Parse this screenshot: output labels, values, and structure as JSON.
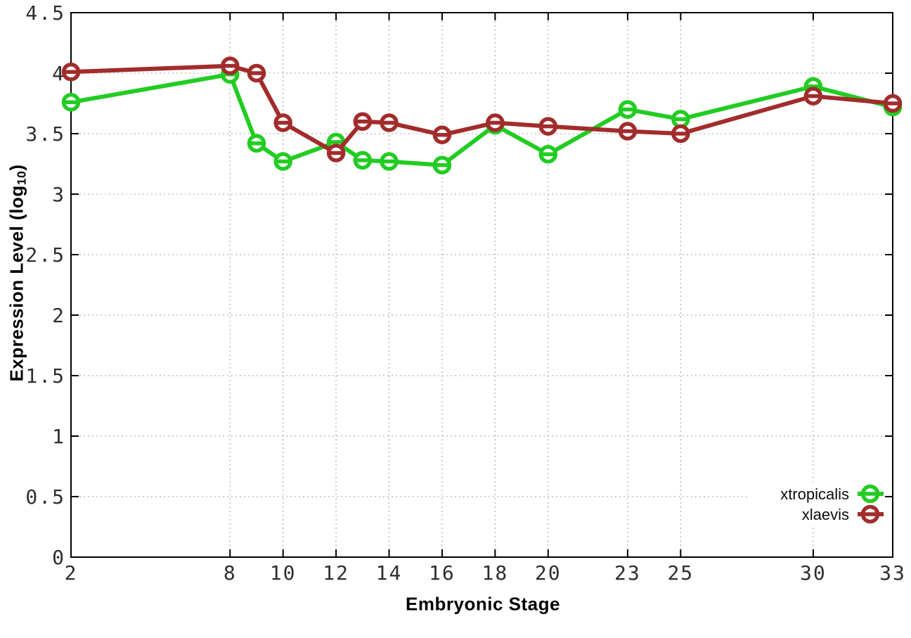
{
  "chart_data": {
    "type": "line",
    "title": "",
    "xlabel": "Embryonic Stage",
    "ylabel": "Expression Level (log10)",
    "ylabel_parts": {
      "main": "Expression Level (log",
      "sub": "10",
      "close": ")"
    },
    "x": [
      2,
      8,
      9,
      10,
      12,
      13,
      14,
      16,
      18,
      20,
      23,
      25,
      30,
      33
    ],
    "series": [
      {
        "name": "xtropicalis",
        "color": "#22cc22",
        "values": [
          3.76,
          3.99,
          3.42,
          3.27,
          3.43,
          3.28,
          3.27,
          3.24,
          3.57,
          3.33,
          3.7,
          3.62,
          3.89,
          3.72
        ]
      },
      {
        "name": "xlaevis",
        "color": "#a22c2c",
        "values": [
          4.01,
          4.06,
          4.0,
          3.59,
          3.34,
          3.6,
          3.59,
          3.49,
          3.59,
          3.56,
          3.52,
          3.5,
          3.81,
          3.75
        ]
      }
    ],
    "xticks": [
      2,
      8,
      10,
      12,
      14,
      16,
      18,
      20,
      23,
      25,
      30,
      33
    ],
    "xtick_labels": [
      "2",
      "8",
      "10",
      "12",
      "14",
      "16",
      "18",
      "20",
      "23",
      "25",
      "30",
      "33"
    ],
    "yticks": [
      0,
      0.5,
      1,
      1.5,
      2,
      2.5,
      3,
      3.5,
      4,
      4.5
    ],
    "ytick_labels": [
      "0",
      "0.5",
      "1",
      "1.5",
      "2",
      "2.5",
      "3",
      "3.5",
      "4",
      "4.5"
    ],
    "xlim": [
      2,
      33
    ],
    "ylim": [
      0,
      4.5
    ],
    "grid": true,
    "legend_position": "inside-bottom-right",
    "colors": {
      "grid": "#b3b3b3",
      "border": "#000000",
      "tick_text": "#2e2e2e"
    }
  }
}
